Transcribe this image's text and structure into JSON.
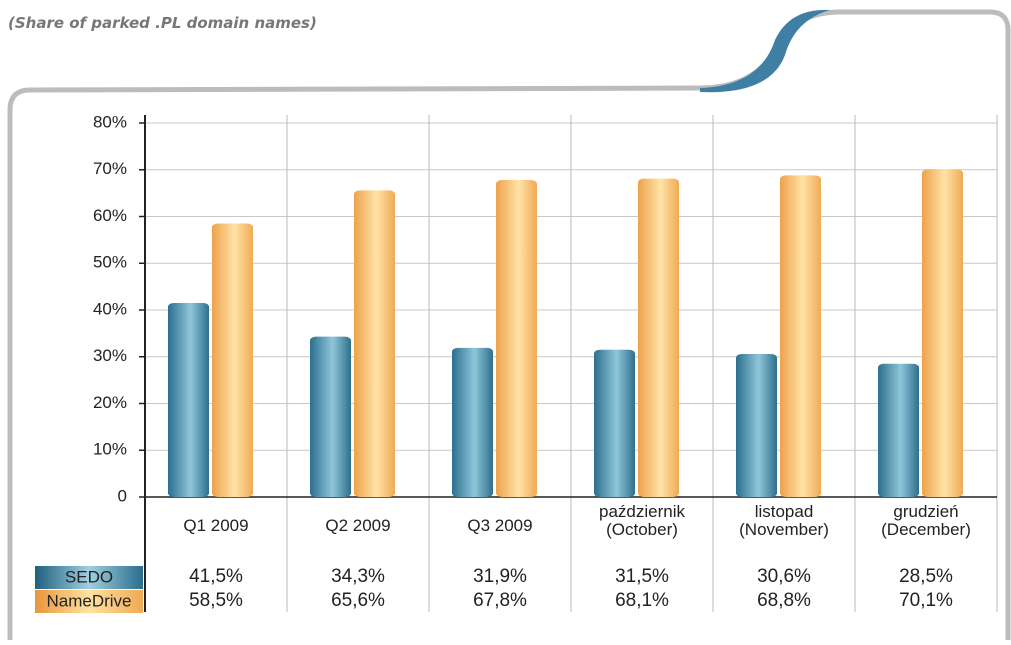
{
  "chart_data": {
    "type": "bar",
    "subtitle": "(Share of parked .PL domain names)",
    "categories": [
      "Q1 2009",
      "Q2 2009",
      "Q3 2009",
      "październik (October)",
      "listopad (November)",
      "grudzień (December)"
    ],
    "series": [
      {
        "name": "SEDO",
        "color": "#3d8aaa",
        "values": [
          41.5,
          34.3,
          31.9,
          31.5,
          30.6,
          28.5
        ],
        "value_labels": [
          "41,5%",
          "34,3%",
          "31,9%",
          "31,5%",
          "30,6%",
          "28,5%"
        ]
      },
      {
        "name": "NameDrive",
        "color": "#f5b45a",
        "values": [
          58.5,
          65.6,
          67.8,
          68.1,
          68.8,
          70.1
        ],
        "value_labels": [
          "58,5%",
          "65,6%",
          "67,8%",
          "68,1%",
          "68,8%",
          "70,1%"
        ]
      }
    ],
    "ylim": [
      0,
      80
    ],
    "yticks": [
      0,
      {
        "value": 10,
        "label": "10%"
      },
      {
        "value": 20,
        "label": "20%"
      },
      {
        "value": 30,
        "label": "30%"
      },
      {
        "value": 40,
        "label": "40%"
      },
      {
        "value": 50,
        "label": "50%"
      },
      {
        "value": 60,
        "label": "60%"
      },
      {
        "value": 70,
        "label": "70%"
      },
      {
        "value": 80,
        "label": "80%"
      }
    ],
    "grid": true
  }
}
